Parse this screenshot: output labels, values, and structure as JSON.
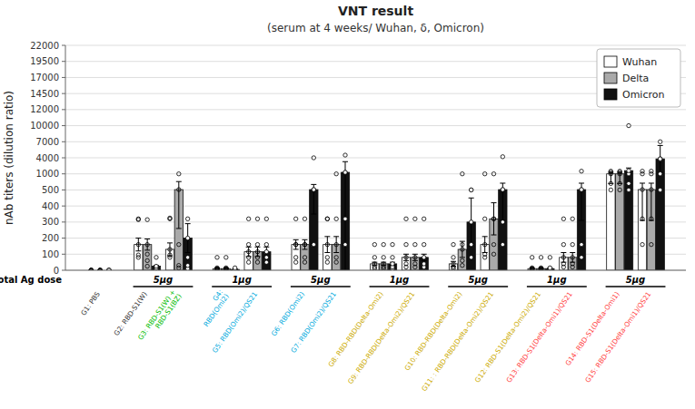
{
  "chart_data": {
    "type": "bar",
    "title": "VNT result",
    "subtitle": "(serum at 4 weeks/ Wuhan, δ, Omicron)",
    "y_label": "nAb titers (dilution ratio)",
    "categories": [
      "G1: PBS",
      "G2: RBD-S1(W)",
      "G3: RBD-S1(W) +\nRBD-S1(BZ)",
      "G4:\nRBD(Omi2)",
      "G5: RBD(Omi2)/QS21",
      "G6: RBD(Omi2)",
      "G7: RBD(Omi2)/QS21",
      "G8: RBD-RBD(Delta-Omi2)",
      "G9: RBD-RBD(Delta-Omi2)/QS21",
      "G10: RBD-RBD(Delta-Omi2)",
      "G11: : RBD-RBD(Delta-Omi2)/QS21",
      "G12: RBD-S1(Delta-Omi2)/QS21",
      "G13: RBD-S1(Delta-Omi1)/QS21",
      "G14: RBD-S1(Delta-Omi1)",
      "G15: RBD-S1(Delta-Omi1)/QS21"
    ],
    "label_colors": [
      "#333333",
      "#333333",
      "#00bb00",
      "#00aadd",
      "#00aadd",
      "#00aadd",
      "#00aadd",
      "#ccaa00",
      "#ccaa00",
      "#ccaa00",
      "#ccaa00",
      "#ccaa00",
      "#ff4444",
      "#ff4444",
      "#ff4444"
    ],
    "dose_title": "Total Ag dose",
    "dose_labels": [
      null,
      "5μg",
      "5μg",
      "1μg",
      "1μg",
      "5μg",
      "5μg",
      "1μg",
      "1μg",
      "5μg",
      "5μg",
      "1μg",
      "1μg",
      "5μg",
      "5μg"
    ],
    "series": [
      {
        "name": "Wuhan",
        "color": "#ffffff",
        "values": [
          0,
          160,
          130,
          10,
          115,
          160,
          160,
          40,
          80,
          40,
          160,
          10,
          80,
          1000,
          510
        ],
        "errors": [
          0,
          40,
          40,
          5,
          30,
          30,
          50,
          10,
          20,
          15,
          50,
          5,
          30,
          300,
          200
        ],
        "points": [
          [
            0,
            0,
            0,
            0,
            0
          ],
          [
            80,
            95,
            160,
            315,
            320
          ],
          [
            80,
            95,
            130,
            320,
            325
          ],
          [
            5,
            8,
            10,
            15,
            80
          ],
          [
            50,
            80,
            115,
            160,
            320
          ],
          [
            50,
            80,
            160,
            160,
            320
          ],
          [
            50,
            80,
            160,
            320,
            320
          ],
          [
            10,
            20,
            40,
            80,
            160
          ],
          [
            20,
            40,
            80,
            160,
            320
          ],
          [
            10,
            20,
            40,
            80,
            160
          ],
          [
            80,
            100,
            160,
            320,
            1000
          ],
          [
            5,
            8,
            10,
            15,
            80
          ],
          [
            20,
            40,
            80,
            160,
            320
          ],
          [
            500,
            700,
            1000,
            1280,
            1500
          ],
          [
            160,
            320,
            510,
            1000,
            1500
          ]
        ]
      },
      {
        "name": "Delta",
        "color": "#aaaaaa",
        "values": [
          0,
          160,
          510,
          10,
          115,
          160,
          160,
          40,
          80,
          130,
          320,
          10,
          80,
          1000,
          510
        ],
        "errors": [
          0,
          35,
          250,
          5,
          30,
          30,
          50,
          10,
          20,
          50,
          100,
          5,
          30,
          300,
          200
        ],
        "points": [
          [
            0,
            0,
            0,
            0,
            0
          ],
          [
            25,
            60,
            100,
            160,
            315
          ],
          [
            15,
            30,
            160,
            510,
            1000
          ],
          [
            5,
            8,
            10,
            15,
            80
          ],
          [
            50,
            80,
            115,
            160,
            320
          ],
          [
            50,
            80,
            160,
            160,
            320
          ],
          [
            50,
            80,
            160,
            320,
            1000
          ],
          [
            10,
            20,
            40,
            80,
            160
          ],
          [
            20,
            40,
            80,
            160,
            320
          ],
          [
            30,
            60,
            130,
            160,
            1000
          ],
          [
            100,
            160,
            320,
            320,
            1000
          ],
          [
            5,
            8,
            10,
            15,
            80
          ],
          [
            20,
            40,
            80,
            160,
            320
          ],
          [
            500,
            700,
            1000,
            1280,
            1500
          ],
          [
            160,
            320,
            510,
            1000,
            1500
          ]
        ]
      },
      {
        "name": "Omicron",
        "color": "#111111",
        "values": [
          0,
          25,
          200,
          5,
          115,
          510,
          1280,
          40,
          80,
          300,
          510,
          10,
          510,
          1600,
          3800
        ],
        "errors": [
          0,
          5,
          90,
          3,
          30,
          160,
          2000,
          10,
          20,
          150,
          200,
          5,
          200,
          500,
          2500
        ],
        "points": [
          [
            0,
            0,
            0,
            0,
            0
          ],
          [
            0,
            5,
            15,
            25,
            80
          ],
          [
            10,
            30,
            80,
            200,
            320
          ],
          [
            0,
            3,
            5,
            8,
            15
          ],
          [
            50,
            80,
            115,
            160,
            320
          ],
          [
            160,
            160,
            510,
            510,
            4000
          ],
          [
            160,
            320,
            1280,
            1280,
            4500
          ],
          [
            10,
            20,
            40,
            80,
            160
          ],
          [
            20,
            40,
            80,
            160,
            320
          ],
          [
            80,
            160,
            300,
            500,
            500
          ],
          [
            160,
            300,
            510,
            510,
            4200
          ],
          [
            5,
            8,
            10,
            15,
            80
          ],
          [
            80,
            160,
            510,
            510,
            1500
          ],
          [
            500,
            700,
            1000,
            1600,
            10000
          ],
          [
            500,
            1000,
            3800,
            3800,
            7000
          ]
        ]
      }
    ],
    "ylim": [
      0,
      22000
    ],
    "yticks": [
      0,
      100,
      200,
      300,
      400,
      500,
      1000,
      4000,
      7000,
      10000,
      12000,
      14500,
      17000,
      19500,
      22000
    ],
    "grid": true,
    "legend": "upper right"
  }
}
